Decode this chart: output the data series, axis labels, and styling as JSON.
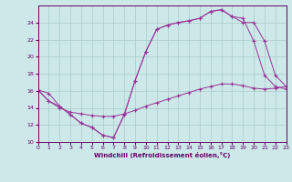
{
  "xlabel": "Windchill (Refroidissement éolien,°C)",
  "bg_color": "#cce8e8",
  "grid_color": "#aacccc",
  "line_color": "#993399",
  "xlim": [
    0,
    23
  ],
  "ylim": [
    10,
    26
  ],
  "yticks": [
    10,
    12,
    14,
    16,
    18,
    20,
    22,
    24
  ],
  "xticks": [
    0,
    1,
    2,
    3,
    4,
    5,
    6,
    7,
    8,
    9,
    10,
    11,
    12,
    13,
    14,
    15,
    16,
    17,
    18,
    19,
    20,
    21,
    22,
    23
  ],
  "series1_x": [
    0,
    1,
    2,
    3,
    4,
    5,
    6,
    7,
    8,
    9,
    10,
    11,
    12,
    13,
    14,
    15,
    16,
    17,
    18,
    19,
    20,
    21,
    22,
    23
  ],
  "series1_y": [
    16.1,
    15.7,
    14.2,
    13.2,
    12.2,
    11.7,
    10.8,
    10.5,
    13.2,
    17.2,
    20.6,
    23.2,
    23.7,
    24.0,
    24.2,
    24.5,
    25.3,
    25.5,
    24.7,
    24.5,
    21.8,
    17.8,
    16.5,
    16.2
  ],
  "series2_x": [
    0,
    1,
    2,
    3,
    4,
    5,
    6,
    7,
    8,
    9,
    10,
    11,
    12,
    13,
    14,
    15,
    16,
    17,
    18,
    19,
    20,
    21,
    22,
    23
  ],
  "series2_y": [
    16.1,
    14.8,
    14.0,
    13.5,
    13.3,
    13.1,
    13.0,
    13.0,
    13.3,
    13.7,
    14.2,
    14.6,
    15.0,
    15.4,
    15.8,
    16.2,
    16.5,
    16.8,
    16.8,
    16.6,
    16.3,
    16.2,
    16.3,
    16.5
  ],
  "series3_x": [
    0,
    1,
    2,
    3,
    4,
    5,
    6,
    7,
    8,
    9,
    10,
    11,
    12,
    13,
    14,
    15,
    16,
    17,
    18,
    19,
    20,
    21,
    22,
    23
  ],
  "series3_y": [
    16.1,
    14.8,
    14.2,
    13.2,
    12.2,
    11.7,
    10.8,
    10.5,
    13.2,
    17.2,
    20.6,
    23.2,
    23.7,
    24.0,
    24.2,
    24.5,
    25.3,
    25.5,
    24.7,
    24.0,
    24.0,
    21.8,
    17.8,
    16.5
  ]
}
